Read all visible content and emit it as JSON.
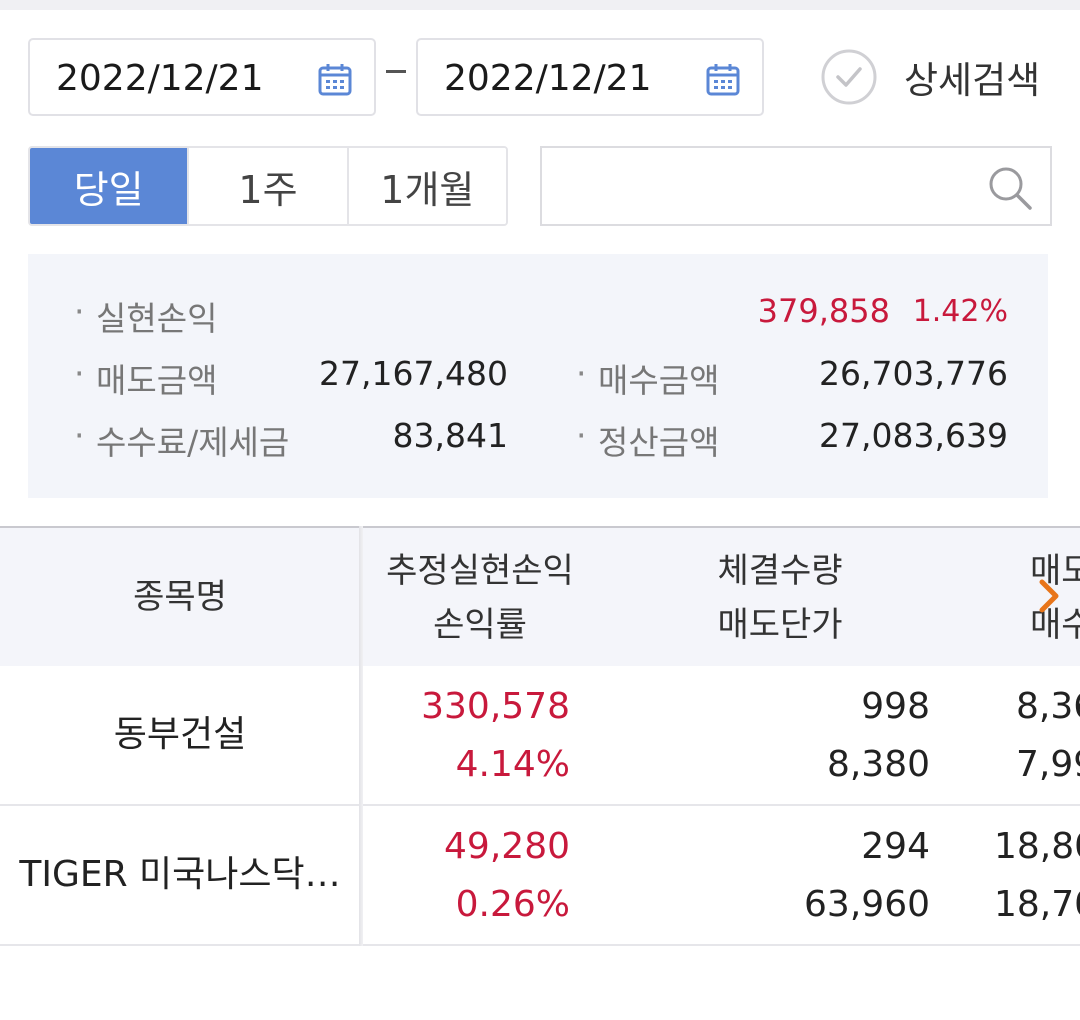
{
  "date_filter": {
    "start_date": "2022/12/21",
    "end_date": "2022/12/21",
    "separator": "-",
    "detail_search_label": "상세검색"
  },
  "period_tabs": [
    {
      "label": "당일",
      "active": true
    },
    {
      "label": "1주",
      "active": false
    },
    {
      "label": "1개월",
      "active": false
    }
  ],
  "search": {
    "value": "",
    "placeholder": ""
  },
  "summary": {
    "realized_pl_label": "실현손익",
    "realized_pl_value": "379,858",
    "realized_pl_rate": "1.42%",
    "sell_amount_label": "매도금액",
    "sell_amount_value": "27,167,480",
    "buy_amount_label": "매수금액",
    "buy_amount_value": "26,703,776",
    "fee_tax_label": "수수료/제세금",
    "fee_tax_value": "83,841",
    "settlement_label": "정산금액",
    "settlement_value": "27,083,639"
  },
  "table": {
    "headers": {
      "name": "종목명",
      "pl_line1": "추정실현손익",
      "pl_line2": "손익률",
      "qty_line1": "체결수량",
      "qty_line2": "매도단가",
      "avg_line1": "매도",
      "avg_line2": "매수"
    },
    "rows": [
      {
        "name": "동부건설",
        "pl": "330,578",
        "rate": "4.14%",
        "qty": "998",
        "sell_price": "8,380",
        "col4_top": "8,36",
        "col4_bottom": "7,99"
      },
      {
        "name": "TIGER 미국나스닥…",
        "pl": "49,280",
        "rate": "0.26%",
        "qty": "294",
        "sell_price": "63,960",
        "col4_top": "18,80",
        "col4_bottom": "18,70"
      }
    ]
  },
  "colors": {
    "accent": "#5b87d6",
    "profit": "#c8193c",
    "arrow": "#e8751a"
  },
  "icons": {
    "calendar": "calendar-icon",
    "check": "check-circle-icon",
    "search": "search-icon",
    "scroll": "chevron-right-icon"
  }
}
